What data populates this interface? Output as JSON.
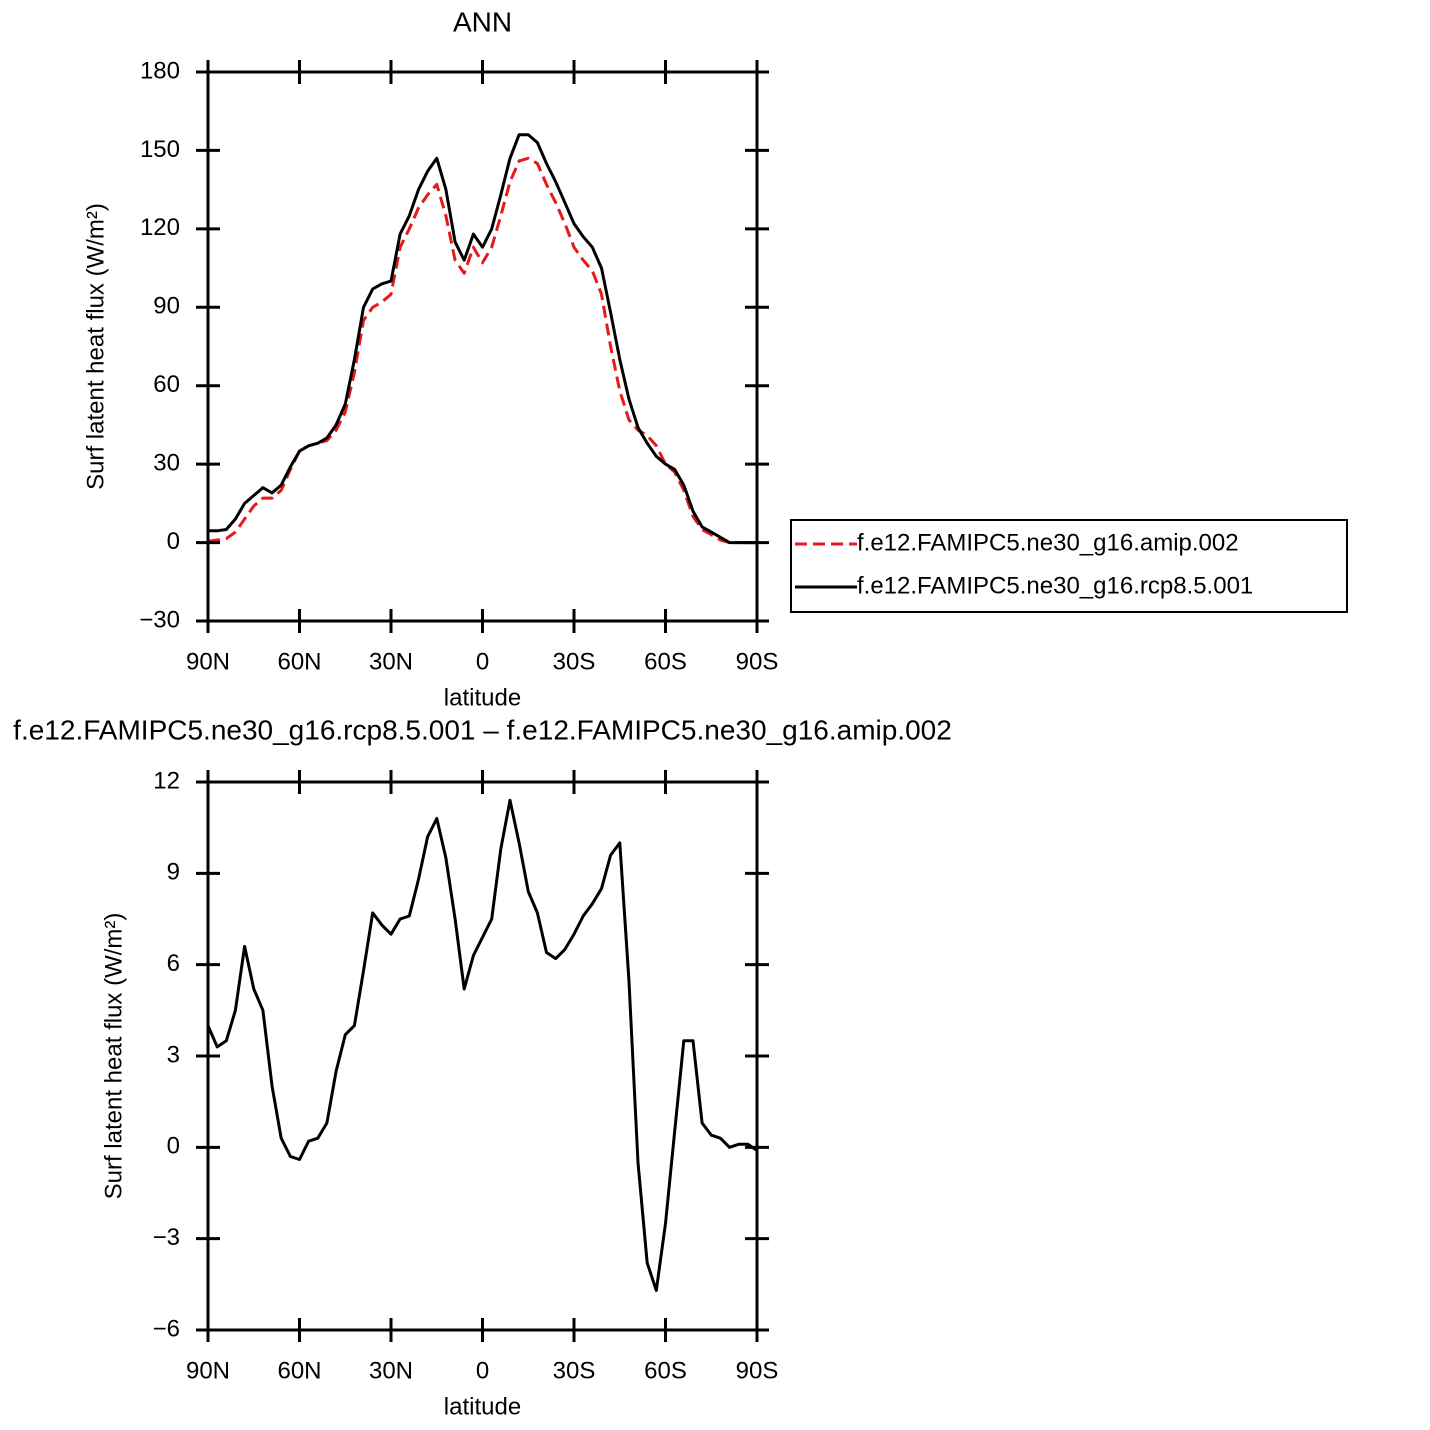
{
  "chart_data": [
    {
      "type": "line",
      "title": "ANN",
      "xlabel": "latitude",
      "ylabel": "Surf latent heat flux (W/m²)",
      "x": [
        90,
        87,
        84,
        81,
        78,
        75,
        72,
        69,
        66,
        63,
        60,
        57,
        54,
        51,
        48,
        45,
        42,
        39,
        36,
        33,
        30,
        27,
        24,
        21,
        18,
        15,
        12,
        9,
        6,
        3,
        0,
        -3,
        -6,
        -9,
        -12,
        -15,
        -18,
        -21,
        -24,
        -27,
        -30,
        -33,
        -36,
        -39,
        -42,
        -45,
        -48,
        -51,
        -54,
        -57,
        -60,
        -63,
        -66,
        -69,
        -72,
        -75,
        -78,
        -81,
        -84,
        -87,
        -90
      ],
      "series": [
        {
          "name": "f.e12.FAMIPC5.ne30_g16.amip.002",
          "color": "#e41a1c",
          "dashed": true,
          "values": [
            0.5,
            1,
            1.5,
            4,
            9,
            14,
            17,
            17,
            20,
            28,
            35,
            37,
            38,
            39,
            43,
            50,
            65,
            85,
            90,
            92,
            95,
            113,
            120,
            128,
            133,
            137,
            125,
            108,
            103,
            113,
            107,
            113,
            125,
            138,
            146,
            147,
            145,
            137,
            130,
            122,
            113,
            108,
            104,
            95,
            75,
            58,
            47,
            43,
            41,
            37,
            30,
            27,
            20,
            10,
            5,
            3,
            1,
            0,
            0,
            0,
            0
          ]
        },
        {
          "name": "f.e12.FAMIPC5.ne30_g16.rcp8.5.001",
          "color": "#000000",
          "dashed": false,
          "values": [
            4.5,
            4.5,
            5,
            9,
            15,
            18,
            21,
            19,
            22,
            29,
            35,
            37,
            38,
            40,
            45,
            53,
            70,
            90,
            97,
            99,
            100,
            118,
            125,
            135,
            142,
            147,
            135,
            115,
            108,
            118,
            113,
            120,
            133,
            147,
            156,
            156,
            153,
            145,
            138,
            130,
            122,
            117,
            113,
            105,
            88,
            70,
            55,
            44,
            38,
            33,
            30,
            28,
            22,
            12,
            6,
            4,
            2,
            0,
            0,
            0,
            0
          ]
        }
      ],
      "xlim": [
        90,
        -90
      ],
      "xticks": [
        {
          "value": 90,
          "label": "90N"
        },
        {
          "value": 60,
          "label": "60N"
        },
        {
          "value": 30,
          "label": "30N"
        },
        0,
        {
          "value": -30,
          "label": "30S"
        },
        {
          "value": -60,
          "label": "60S"
        },
        {
          "value": -90,
          "label": "90S"
        }
      ],
      "ylim": [
        -30,
        180
      ],
      "yticks": [
        {
          "value": -30,
          "label": "−30"
        },
        0,
        30,
        60,
        90,
        120,
        150,
        180
      ],
      "legend": "right"
    },
    {
      "type": "line",
      "title": "f.e12.FAMIPC5.ne30_g16.rcp8.5.001 – f.e12.FAMIPC5.ne30_g16.amip.002",
      "xlabel": "latitude",
      "ylabel": "Surf latent heat flux (W/m²)",
      "x": [
        90,
        87,
        84,
        81,
        78,
        75,
        72,
        69,
        66,
        63,
        60,
        57,
        54,
        51,
        48,
        45,
        42,
        39,
        36,
        33,
        30,
        27,
        24,
        21,
        18,
        15,
        12,
        9,
        6,
        3,
        0,
        -3,
        -6,
        -9,
        -12,
        -15,
        -18,
        -21,
        -24,
        -27,
        -30,
        -33,
        -36,
        -39,
        -42,
        -45,
        -48,
        -51,
        -54,
        -57,
        -60,
        -63,
        -66,
        -69,
        -72,
        -75,
        -78,
        -81,
        -84,
        -87,
        -90
      ],
      "color": "#000000",
      "values": [
        4.0,
        3.3,
        3.5,
        4.5,
        6.6,
        5.2,
        4.5,
        2.0,
        0.3,
        -0.3,
        -0.4,
        0.2,
        0.3,
        0.8,
        2.5,
        3.7,
        4.0,
        5.8,
        7.7,
        7.3,
        7.0,
        7.5,
        7.6,
        8.8,
        10.2,
        10.8,
        9.5,
        7.5,
        5.2,
        6.3,
        6.9,
        7.5,
        9.8,
        11.4,
        10.0,
        8.4,
        7.7,
        6.4,
        6.2,
        6.5,
        7.0,
        7.6,
        8.0,
        8.5,
        9.6,
        10.0,
        5.5,
        -0.5,
        -3.8,
        -4.7,
        -2.5,
        0.5,
        3.5,
        3.5,
        0.8,
        0.4,
        0.3,
        0.0,
        0.1,
        0.1,
        -0.1
      ],
      "xlim": [
        90,
        -90
      ],
      "xticks": [
        {
          "value": 90,
          "label": "90N"
        },
        {
          "value": 60,
          "label": "60N"
        },
        {
          "value": 30,
          "label": "30N"
        },
        0,
        {
          "value": -30,
          "label": "30S"
        },
        {
          "value": -60,
          "label": "60S"
        },
        {
          "value": -90,
          "label": "90S"
        }
      ],
      "ylim": [
        -6,
        12
      ],
      "yticks": [
        {
          "value": -6,
          "label": "−6"
        },
        {
          "value": -3,
          "label": "−3"
        },
        0,
        3,
        6,
        9,
        12
      ]
    }
  ]
}
